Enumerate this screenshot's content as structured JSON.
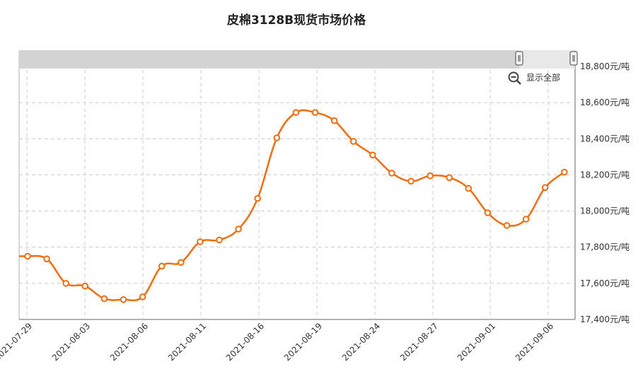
{
  "chart_data": {
    "type": "line",
    "title": "皮棉3128B现货市场价格",
    "xlabel": "",
    "ylabel": "",
    "y_unit_suffix": "元/吨",
    "ylim": [
      17400,
      18800
    ],
    "yticks": [
      17400,
      17600,
      17800,
      18000,
      18200,
      18400,
      18600,
      18800
    ],
    "xtick_labels": [
      "2021-07-29",
      "2021-08-03",
      "2021-08-06",
      "2021-08-11",
      "2021-08-16",
      "2021-08-19",
      "2021-08-24",
      "2021-08-27",
      "2021-09-01",
      "2021-09-06"
    ],
    "grid": true,
    "series_color": "#f26d0f",
    "values": [
      17750,
      17735,
      17600,
      17585,
      17515,
      17510,
      17525,
      17695,
      17715,
      17830,
      17840,
      17900,
      18070,
      18405,
      18545,
      18545,
      18500,
      18385,
      18310,
      18210,
      18165,
      18195,
      18185,
      18125,
      17990,
      17920,
      17955,
      18130,
      18215
    ]
  },
  "zoom": {
    "reset_label": "显示全部",
    "icon": "zoom-out-icon"
  }
}
